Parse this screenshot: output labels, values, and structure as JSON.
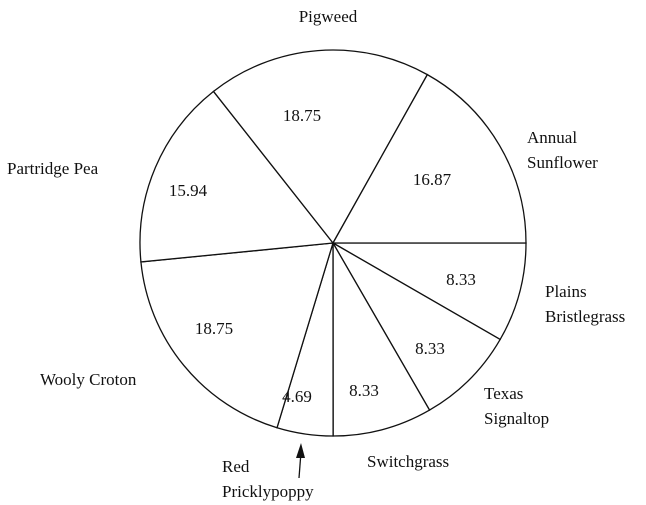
{
  "chart_data": {
    "type": "pie",
    "categories": [
      "Plains\nBristlegrass",
      "Texas\nSignaltop",
      "Switchgrass",
      "Red\nPricklypoppy",
      "Wooly Croton",
      "Partridge Pea",
      "Pigweed",
      "Annual\nSunflower"
    ],
    "values": [
      8.33,
      8.33,
      8.33,
      4.69,
      18.75,
      15.94,
      18.75,
      16.87
    ],
    "color": "#ffffff"
  }
}
